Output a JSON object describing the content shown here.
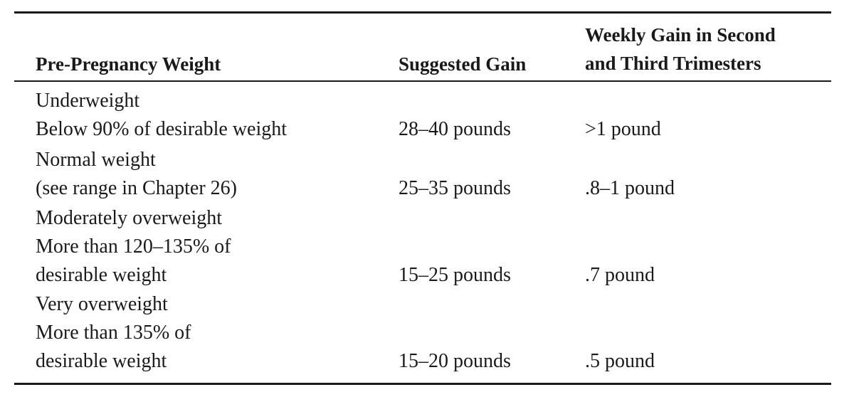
{
  "table": {
    "headers": {
      "weight": "Pre-Pregnancy Weight",
      "gain": "Suggested Gain",
      "weekly_line1": "Weekly Gain in Second",
      "weekly_line2": "and Third Trimesters"
    },
    "rows": [
      {
        "category": [
          "Underweight",
          "Below 90% of desirable weight"
        ],
        "gain": "28–40 pounds",
        "weekly": ">1 pound"
      },
      {
        "category": [
          "Normal weight",
          "(see range in Chapter 26)"
        ],
        "gain": "25–35 pounds",
        "weekly": ".8–1 pound"
      },
      {
        "category": [
          "Moderately overweight",
          "More than 120–135% of",
          "desirable weight"
        ],
        "gain": "15–25 pounds",
        "weekly": ".7 pound"
      },
      {
        "category": [
          "Very overweight",
          "More than 135% of",
          "desirable weight"
        ],
        "gain": "15–20 pounds",
        "weekly": ".5 pound"
      }
    ]
  }
}
